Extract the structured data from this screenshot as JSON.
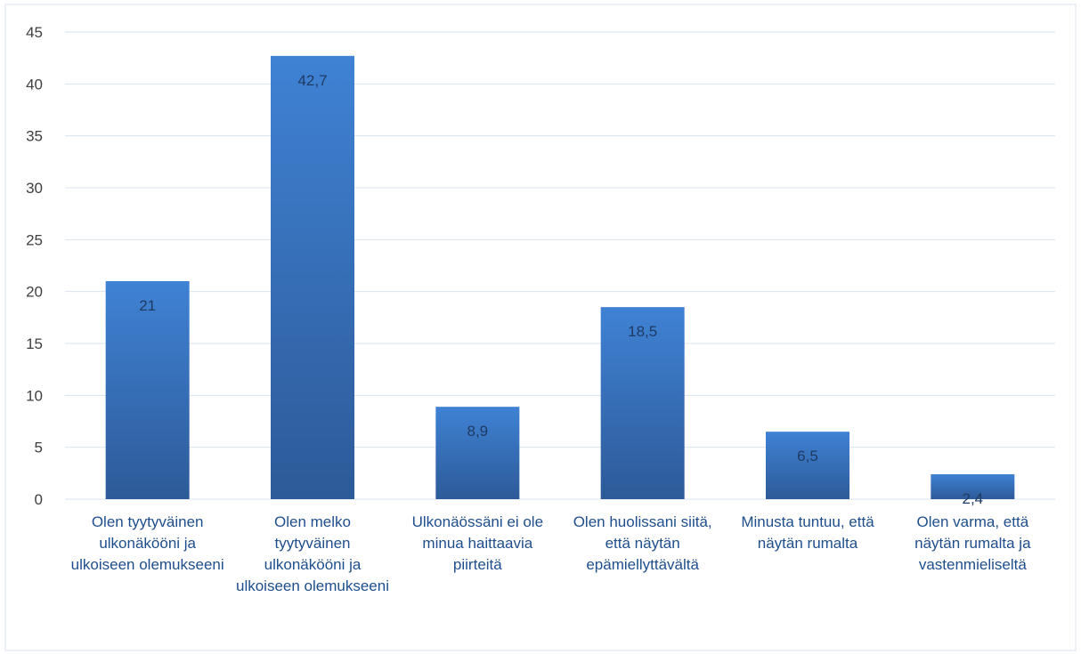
{
  "chart_data": {
    "type": "bar",
    "categories": [
      "Olen tyytyväinen ulkonäkööni ja ulkoiseen olemukseeni",
      "Olen melko tyytyväinen ulkonäkööni ja ulkoiseen olemukseeni",
      "Ulkonäössäni ei ole minua haittaavia piirteitä",
      "Olen huolissani siitä, että näytän epämiellyttävältä",
      "Minusta tuntuu, että näytän rumalta",
      "Olen varma, että näytän rumalta ja vastenmieliseltä"
    ],
    "values": [
      21,
      42.7,
      8.9,
      18.5,
      6.5,
      2.4
    ],
    "value_labels": [
      "21",
      "42,7",
      "8,9",
      "18,5",
      "6,5",
      "2,4"
    ],
    "color": "#3a75c4",
    "ylim": [
      0,
      45
    ],
    "yticks": [
      0,
      5,
      10,
      15,
      20,
      25,
      30,
      35,
      40,
      45
    ],
    "grid": true
  }
}
